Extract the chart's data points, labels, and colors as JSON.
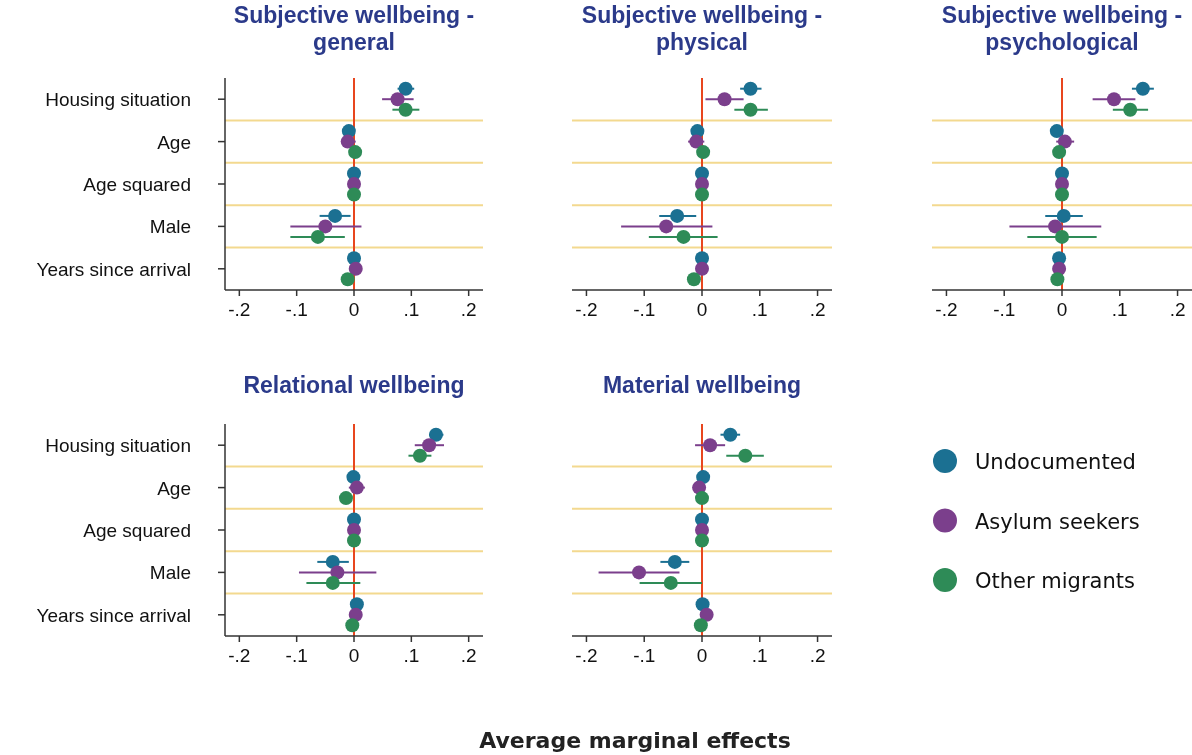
{
  "chart_data": [
    {
      "type": "scatter",
      "title": "Subjective wellbeing - general",
      "orientation": "horizontal",
      "categories": [
        "Housing situation",
        "Age",
        "Age squared",
        "Male",
        "Years since arrival"
      ],
      "xlim": [
        -0.225,
        0.225
      ],
      "xticks": [
        {
          "value": -0.2,
          "label": "-.2"
        },
        {
          "value": -0.1,
          "label": "-.1"
        },
        {
          "value": 0,
          "label": "0"
        },
        {
          "value": 0.1,
          "label": ".1"
        },
        {
          "value": 0.2,
          "label": ".2"
        }
      ],
      "grid": "y",
      "marker": "circle",
      "ref_lines": [
        {
          "axis": "x",
          "value": 0,
          "color": "#e8461e"
        }
      ],
      "series": [
        {
          "color": "#1b7092",
          "values": [
            0.09,
            -0.009,
            0,
            -0.033,
            0
          ],
          "errors": [
            [
              0.076,
              0.105
            ],
            null,
            null,
            [
              -0.06,
              -0.006
            ],
            null
          ]
        },
        {
          "color": "#7b3f8c",
          "values": [
            0.076,
            -0.011,
            0,
            -0.05,
            0.003
          ],
          "errors": [
            [
              0.049,
              0.104
            ],
            [
              -0.021,
              0.003
            ],
            null,
            [
              -0.111,
              0.013
            ],
            null
          ]
        },
        {
          "color": "#2e8b57",
          "values": [
            0.09,
            0.002,
            0,
            -0.063,
            -0.011
          ],
          "errors": [
            [
              0.067,
              0.114
            ],
            null,
            null,
            [
              -0.111,
              -0.016
            ],
            null
          ]
        }
      ]
    },
    {
      "type": "scatter",
      "title": "Subjective wellbeing - physical",
      "orientation": "horizontal",
      "categories": [
        null,
        null,
        null,
        null,
        null
      ],
      "xlim": [
        -0.225,
        0.225
      ],
      "xticks": [
        {
          "value": -0.2,
          "label": "-.2"
        },
        {
          "value": -0.1,
          "label": "-.1"
        },
        {
          "value": 0,
          "label": "0"
        },
        {
          "value": 0.1,
          "label": ".1"
        },
        {
          "value": 0.2,
          "label": ".2"
        }
      ],
      "grid": "y",
      "marker": "circle",
      "tick_labels": "x",
      "ref_lines": [
        {
          "axis": "x",
          "value": 0,
          "color": "#e8461e"
        }
      ],
      "series": [
        {
          "color": "#1b7092",
          "values": [
            0.084,
            -0.008,
            0,
            -0.043,
            0
          ],
          "errors": [
            [
              0.066,
              0.103
            ],
            null,
            null,
            [
              -0.074,
              -0.01
            ],
            null
          ]
        },
        {
          "color": "#7b3f8c",
          "values": [
            0.039,
            -0.01,
            0,
            -0.062,
            0
          ],
          "errors": [
            [
              0.006,
              0.072
            ],
            [
              -0.024,
              0.004
            ],
            null,
            [
              -0.14,
              0.018
            ],
            null
          ]
        },
        {
          "color": "#2e8b57",
          "values": [
            0.084,
            0.002,
            0,
            -0.032,
            -0.014
          ],
          "errors": [
            [
              0.056,
              0.114
            ],
            null,
            null,
            [
              -0.092,
              0.027
            ],
            null
          ]
        }
      ]
    },
    {
      "type": "scatter",
      "title": "Subjective wellbeing - psychological",
      "orientation": "horizontal",
      "categories": [
        null,
        null,
        null,
        null,
        null
      ],
      "xlim": [
        -0.225,
        0.225
      ],
      "xticks": [
        {
          "value": -0.2,
          "label": "-.2"
        },
        {
          "value": -0.1,
          "label": "-.1"
        },
        {
          "value": 0,
          "label": "0"
        },
        {
          "value": 0.1,
          "label": ".1"
        },
        {
          "value": 0.2,
          "label": ".2"
        }
      ],
      "grid": "y",
      "marker": "circle",
      "tick_labels": "x",
      "ref_lines": [
        {
          "axis": "x",
          "value": 0,
          "color": "#e8461e"
        }
      ],
      "series": [
        {
          "color": "#1b7092",
          "values": [
            0.14,
            -0.009,
            0,
            0.003,
            -0.005
          ],
          "errors": [
            [
              0.121,
              0.159
            ],
            null,
            null,
            [
              -0.029,
              0.036
            ],
            null
          ]
        },
        {
          "color": "#7b3f8c",
          "values": [
            0.09,
            0.005,
            0,
            -0.012,
            -0.005
          ],
          "errors": [
            [
              0.053,
              0.127
            ],
            [
              -0.01,
              0.021
            ],
            null,
            [
              -0.091,
              0.068
            ],
            null
          ]
        },
        {
          "color": "#2e8b57",
          "values": [
            0.118,
            -0.005,
            0,
            0,
            -0.008
          ],
          "errors": [
            [
              0.088,
              0.149
            ],
            null,
            null,
            [
              -0.06,
              0.06
            ],
            null
          ]
        }
      ]
    },
    {
      "type": "scatter",
      "title": "Relational wellbeing",
      "orientation": "horizontal",
      "categories": [
        "Housing situation",
        "Age",
        "Age squared",
        "Male",
        "Years since arrival"
      ],
      "xlim": [
        -0.225,
        0.225
      ],
      "xticks": [
        {
          "value": -0.2,
          "label": "-.2"
        },
        {
          "value": -0.1,
          "label": "-.1"
        },
        {
          "value": 0,
          "label": "0"
        },
        {
          "value": 0.1,
          "label": ".1"
        },
        {
          "value": 0.2,
          "label": ".2"
        }
      ],
      "grid": "y",
      "marker": "circle",
      "ref_lines": [
        {
          "axis": "x",
          "value": 0,
          "color": "#e8461e"
        }
      ],
      "series": [
        {
          "color": "#1b7092",
          "values": [
            0.143,
            -0.001,
            0,
            -0.037,
            0.005
          ],
          "errors": [
            [
              0.131,
              0.156
            ],
            null,
            null,
            [
              -0.064,
              -0.009
            ],
            null
          ]
        },
        {
          "color": "#7b3f8c",
          "values": [
            0.131,
            0.005,
            0,
            -0.029,
            0.003
          ],
          "errors": [
            [
              0.106,
              0.157
            ],
            [
              -0.009,
              0.019
            ],
            null,
            [
              -0.096,
              0.039
            ],
            null
          ]
        },
        {
          "color": "#2e8b57",
          "values": [
            0.115,
            -0.014,
            0,
            -0.037,
            -0.003
          ],
          "errors": [
            [
              0.095,
              0.135
            ],
            null,
            null,
            [
              -0.083,
              0.011
            ],
            null
          ]
        }
      ]
    },
    {
      "type": "scatter",
      "title": "Material wellbeing",
      "xlabel": "Average marginal effects",
      "orientation": "horizontal",
      "categories": [
        null,
        null,
        null,
        null,
        null
      ],
      "xlim": [
        -0.225,
        0.225
      ],
      "xticks": [
        {
          "value": -0.2,
          "label": "-.2"
        },
        {
          "value": -0.1,
          "label": "-.1"
        },
        {
          "value": 0,
          "label": "0"
        },
        {
          "value": 0.1,
          "label": ".1"
        },
        {
          "value": 0.2,
          "label": ".2"
        }
      ],
      "grid": "y",
      "marker": "circle",
      "tick_labels": "x",
      "legend": "right",
      "ref_lines": [
        {
          "axis": "x",
          "value": 0,
          "color": "#e8461e"
        }
      ],
      "series": [
        {
          "name": "Undocumented",
          "color": "#1b7092",
          "values": [
            0.049,
            0.002,
            0,
            -0.047,
            0.001
          ],
          "errors": [
            [
              0.032,
              0.066
            ],
            null,
            null,
            [
              -0.072,
              -0.022
            ],
            null
          ]
        },
        {
          "name": "Asylum seekers",
          "color": "#7b3f8c",
          "values": [
            0.014,
            -0.005,
            0,
            -0.109,
            0.008
          ],
          "errors": [
            [
              -0.012,
              0.04
            ],
            null,
            null,
            [
              -0.179,
              -0.039
            ],
            null
          ]
        },
        {
          "name": "Other migrants",
          "color": "#2e8b57",
          "values": [
            0.075,
            0,
            0,
            -0.054,
            -0.002
          ],
          "errors": [
            [
              0.042,
              0.107
            ],
            null,
            null,
            [
              -0.108,
              0
            ],
            null
          ]
        }
      ]
    }
  ]
}
